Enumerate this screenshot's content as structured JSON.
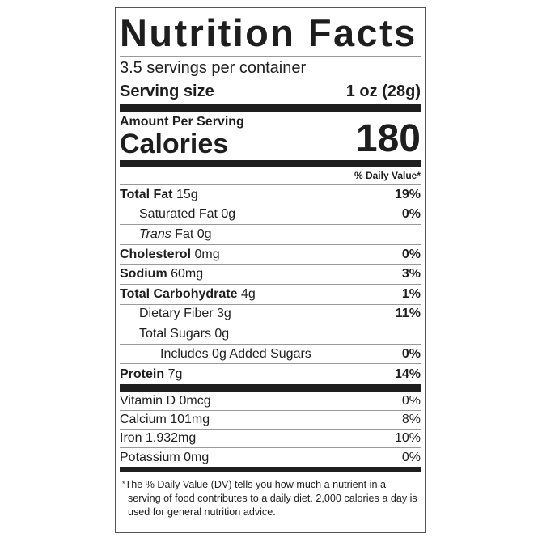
{
  "title": "Nutrition Facts",
  "servings_per_container": "3.5 servings per container",
  "serving_size": {
    "label": "Serving size",
    "value": "1 oz (28g)"
  },
  "amount_per_serving": "Amount Per Serving",
  "calories": {
    "label": "Calories",
    "value": "180"
  },
  "daily_value_header": "% Daily Value*",
  "nutrients": [
    {
      "name": "Total Fat",
      "amount": "15g",
      "dv": "19%"
    },
    {
      "name": "Saturated Fat",
      "amount": "0g",
      "dv": "0%"
    },
    {
      "name": "Trans",
      "name_rest": "Fat",
      "amount": "0g",
      "dv": ""
    },
    {
      "name": "Cholesterol",
      "amount": "0mg",
      "dv": "0%"
    },
    {
      "name": "Sodium",
      "amount": "60mg",
      "dv": "3%"
    },
    {
      "name": "Total Carbohydrate",
      "amount": "4g",
      "dv": "1%"
    },
    {
      "name": "Dietary Fiber",
      "amount": "3g",
      "dv": "11%"
    },
    {
      "name": "Total Sugars",
      "amount": "0g",
      "dv": ""
    },
    {
      "name": "Includes 0g Added Sugars",
      "amount": "",
      "dv": "0%"
    },
    {
      "name": "Protein",
      "amount": "7g",
      "dv": "14%"
    }
  ],
  "vitamins": [
    {
      "name": "Vitamin D 0mcg",
      "dv": "0%"
    },
    {
      "name": "Calcium 101mg",
      "dv": "8%"
    },
    {
      "name": "Iron 1.932mg",
      "dv": "10%"
    },
    {
      "name": "Potassium 0mg",
      "dv": "0%"
    }
  ],
  "footnote": {
    "marker": "*",
    "text": "The % Daily Value (DV) tells you how much a nutrient in a serving of food contributes to a daily diet. 2,000 calories a day is used for general nutrition advice."
  }
}
